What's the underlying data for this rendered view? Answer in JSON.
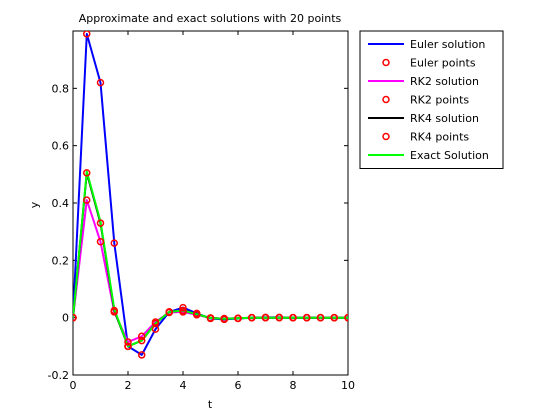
{
  "chart_data": {
    "type": "line",
    "title": "Approximate and exact solutions with 20 points",
    "xlabel": "t",
    "ylabel": "y",
    "xlim": [
      0,
      10
    ],
    "ylim": [
      -0.2,
      1.0
    ],
    "xticks": [
      0,
      2,
      4,
      6,
      8,
      10
    ],
    "yticks": [
      -0.2,
      0,
      0.2,
      0.4,
      0.6,
      0.8
    ],
    "xtick_labels": [
      "0",
      "2",
      "4",
      "6",
      "8",
      "10"
    ],
    "ytick_labels": [
      "-0.2",
      "0",
      "0.2",
      "0.4",
      "0.6",
      "0.8"
    ],
    "grid": false,
    "legend_position": "outside-top-right",
    "x": [
      0,
      0.5,
      1.0,
      1.5,
      2.0,
      2.5,
      3.0,
      3.5,
      4.0,
      4.5,
      5.0,
      5.5,
      6.0,
      6.5,
      7.0,
      7.5,
      8.0,
      8.5,
      9.0,
      9.5,
      10.0
    ],
    "series": [
      {
        "name": "Euler solution",
        "kind": "line",
        "color": "#0000ff",
        "values": [
          0,
          0.99,
          0.82,
          0.26,
          -0.1,
          -0.13,
          -0.04,
          0.02,
          0.035,
          0.015,
          -0.003,
          -0.006,
          -0.003,
          0.0,
          0.001,
          0.001,
          0.0,
          0.0,
          0.0,
          0.0,
          0.0
        ]
      },
      {
        "name": "Euler points",
        "kind": "markers",
        "color": "#ff0000",
        "values": [
          0,
          0.99,
          0.82,
          0.26,
          -0.1,
          -0.13,
          -0.04,
          0.02,
          0.035,
          0.015,
          -0.003,
          -0.006,
          -0.003,
          0.0,
          0.001,
          0.001,
          0.0,
          0.0,
          0.0,
          0.0,
          0.0
        ]
      },
      {
        "name": "RK2 solution",
        "kind": "line",
        "color": "#ff00ff",
        "values": [
          0,
          0.41,
          0.265,
          0.02,
          -0.085,
          -0.065,
          -0.015,
          0.018,
          0.02,
          0.01,
          -0.001,
          -0.003,
          -0.002,
          0.0,
          0.0,
          0.0,
          0.0,
          0.0,
          0.0,
          0.0,
          0.0
        ]
      },
      {
        "name": "RK2 points",
        "kind": "markers",
        "color": "#ff0000",
        "values": [
          0,
          0.41,
          0.265,
          0.02,
          -0.085,
          -0.065,
          -0.015,
          0.018,
          0.02,
          0.01,
          -0.001,
          -0.003,
          -0.002,
          0.0,
          0.0,
          0.0,
          0.0,
          0.0,
          0.0,
          0.0,
          0.0
        ]
      },
      {
        "name": "RK4 solution",
        "kind": "line",
        "color": "#000000",
        "values": [
          0,
          0.505,
          0.33,
          0.025,
          -0.1,
          -0.08,
          -0.02,
          0.02,
          0.025,
          0.012,
          -0.001,
          -0.004,
          -0.002,
          0.0,
          0.0,
          0.0,
          0.0,
          0.0,
          0.0,
          0.0,
          0.0
        ]
      },
      {
        "name": "RK4 points",
        "kind": "markers",
        "color": "#ff0000",
        "values": [
          0,
          0.505,
          0.33,
          0.025,
          -0.1,
          -0.08,
          -0.02,
          0.02,
          0.025,
          0.012,
          -0.001,
          -0.004,
          -0.002,
          0.0,
          0.0,
          0.0,
          0.0,
          0.0,
          0.0,
          0.0,
          0.0
        ]
      },
      {
        "name": "Exact Solution",
        "kind": "line",
        "color": "#00ff00",
        "values": [
          0,
          0.51,
          0.335,
          0.03,
          -0.1,
          -0.08,
          -0.02,
          0.02,
          0.025,
          0.012,
          -0.001,
          -0.004,
          -0.002,
          0.0,
          0.0,
          0.0,
          0.0,
          0.0,
          0.0,
          0.0,
          0.0
        ]
      }
    ]
  }
}
